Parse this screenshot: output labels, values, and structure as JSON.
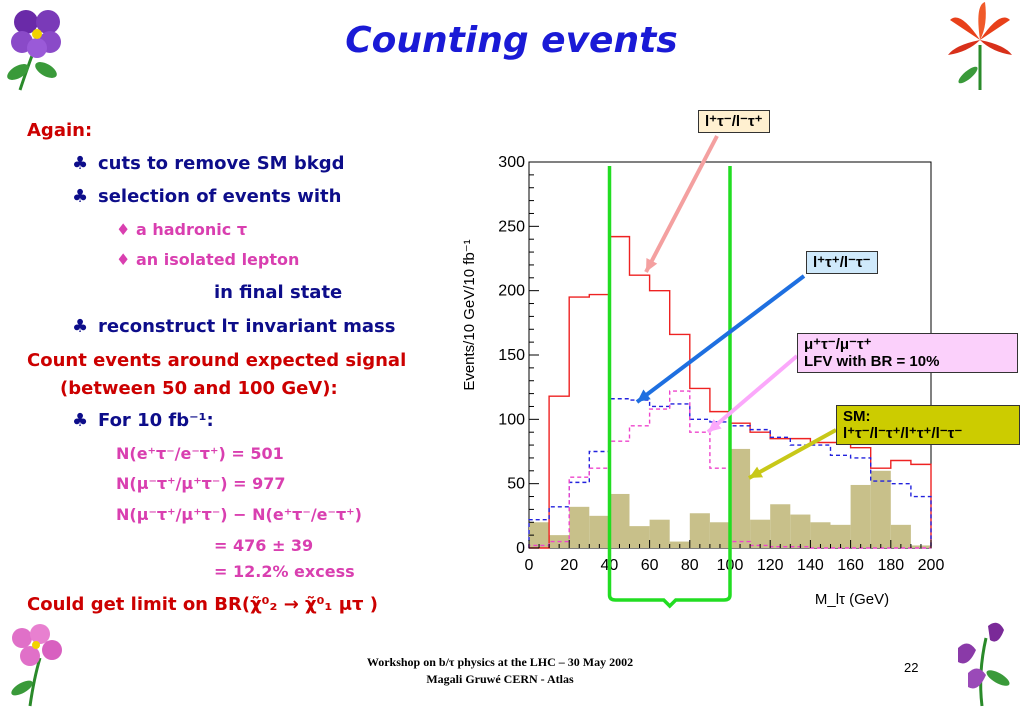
{
  "title": "Counting events",
  "left": {
    "again": "Again:",
    "b1": "cuts to remove SM bkgd",
    "b2": "selection of events with",
    "s1": "a hadronic τ",
    "s2": "an isolated lepton",
    "final": "in final state",
    "b3": "reconstruct lτ invariant mass",
    "count1": "Count events around expected signal",
    "count2": "(between 50 and 100 GeV):",
    "b4": "For 10 fb⁻¹:",
    "n1": "N(e⁺τ⁻/e⁻τ⁺) = 501",
    "n2": "N(μ⁻τ⁺/μ⁺τ⁻) = 977",
    "n3": "N(μ⁻τ⁺/μ⁺τ⁻) − N(e⁺τ⁻/e⁻τ⁺)",
    "r1": "= 476 ± 39",
    "r2": "= 12.2% excess",
    "limit": "Could get limit on BR(χ̃⁰₂ → χ̃⁰₁ μτ )"
  },
  "legend": {
    "l1": "l⁺τ⁻/l⁻τ⁺",
    "l2": "l⁺τ⁺/l⁻τ⁻",
    "l3a": "μ⁺τ⁻/μ⁻τ⁺",
    "l3b": "LFV with BR = 10%",
    "l4a": "SM:",
    "l4b": "l⁺τ⁻/l⁻τ⁺/l⁺τ⁺/l⁻τ⁻"
  },
  "footer": {
    "line1": "Workshop on b/τ physics at the LHC – 30 May 2002",
    "line2": "Magali Gruwé CERN - Atlas",
    "page": "22"
  },
  "colors": {
    "title": "#1a1ad6",
    "red_text": "#cc0000",
    "blue_text": "#0d0d8a",
    "magenta_text": "#d93fb0",
    "window": "#22dd22",
    "sm_fill": "#c8c08a"
  },
  "chart_data": {
    "type": "bar",
    "xlabel": "M_lτ (GeV)",
    "ylabel": "Events/10 GeV/10 fb⁻¹",
    "xlim": [
      0,
      200
    ],
    "ylim": [
      0,
      300
    ],
    "xticks": [
      0,
      20,
      40,
      60,
      80,
      100,
      120,
      140,
      160,
      180,
      200
    ],
    "yticks": [
      0,
      50,
      100,
      150,
      200,
      250,
      300
    ],
    "bin_edges": [
      0,
      10,
      20,
      30,
      40,
      50,
      60,
      70,
      80,
      90,
      100,
      110,
      120,
      130,
      140,
      150,
      160,
      170,
      180,
      190,
      200
    ],
    "series": [
      {
        "key": "red",
        "style": "solid",
        "color": "#ee2222",
        "values": [
          0,
          118,
          195,
          197,
          242,
          212,
          200,
          166,
          124,
          106,
          97,
          90,
          85,
          85,
          82,
          82,
          78,
          62,
          68,
          65
        ]
      },
      {
        "key": "blue",
        "style": "dashed",
        "color": "#2222dd",
        "values": [
          22,
          32,
          51,
          75,
          116,
          115,
          110,
          112,
          100,
          98,
          95,
          92,
          86,
          80,
          80,
          72,
          70,
          52,
          50,
          40
        ]
      },
      {
        "key": "magenta",
        "style": "dashed",
        "color": "#ee44cc",
        "values": [
          2,
          5,
          55,
          62,
          83,
          95,
          108,
          122,
          90,
          62,
          5,
          2,
          1,
          1,
          0,
          0,
          0,
          0,
          0,
          0
        ]
      },
      {
        "key": "sm",
        "style": "filled",
        "color": "#c8c08a",
        "values": [
          20,
          10,
          32,
          25,
          42,
          17,
          22,
          5,
          27,
          20,
          77,
          22,
          34,
          26,
          20,
          18,
          49,
          60,
          18,
          2
        ]
      }
    ],
    "window": [
      50,
      100
    ]
  }
}
